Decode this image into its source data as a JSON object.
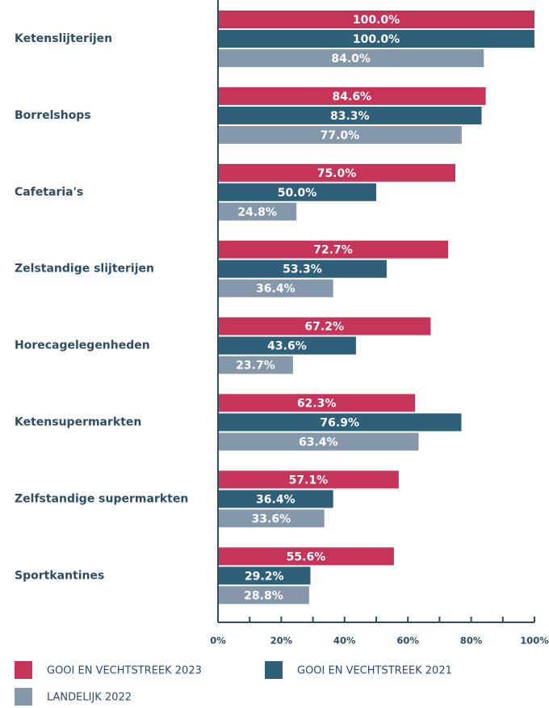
{
  "chart_data": {
    "type": "hbar",
    "categories": [
      "Ketenslijterijen",
      "Borrelshops",
      "Cafetaria's",
      "Zelstandige slijterijen",
      "Horecagelegenheden",
      "Ketensupermarkten",
      "Zelfstandige supermarkten",
      "Sportkantines"
    ],
    "series": [
      {
        "name": "GOOI EN VECHTSTREEK 2023",
        "color": "#c73459",
        "values": [
          100.0,
          84.6,
          75.0,
          72.7,
          67.2,
          62.3,
          57.1,
          55.6
        ],
        "value_labels": [
          "100.0%",
          "84.6%",
          "75.0%",
          "72.7%",
          "67.2%",
          "62.3%",
          "57.1%",
          "55.6%"
        ]
      },
      {
        "name": "GOOI EN VECHTSTREEK 2021",
        "color": "#2f6079",
        "values": [
          100.0,
          83.3,
          50.0,
          53.3,
          43.6,
          76.9,
          36.4,
          29.2
        ],
        "value_labels": [
          "100.0%",
          "83.3%",
          "50.0%",
          "53.3%",
          "43.6%",
          "76.9%",
          "36.4%",
          "29.2%"
        ]
      },
      {
        "name": "LANDELIJK 2022",
        "color": "#8597ab",
        "values": [
          84.0,
          77.0,
          24.8,
          36.4,
          23.7,
          63.4,
          33.6,
          28.8
        ],
        "value_labels": [
          "84.0%",
          "77.0%",
          "24.8%",
          "36.4%",
          "23.7%",
          "63.4%",
          "33.6%",
          "28.8%"
        ]
      }
    ],
    "xlim": [
      0,
      100
    ],
    "xticks": [
      {
        "value": 0,
        "label": "0%"
      },
      {
        "value": 20,
        "label": "20%"
      },
      {
        "value": 40,
        "label": "40%"
      },
      {
        "value": 60,
        "label": "60%"
      },
      {
        "value": 80,
        "label": "80%"
      },
      {
        "value": 100,
        "label": "100%"
      }
    ],
    "xticks_minor": [
      10,
      30,
      50,
      70,
      90
    ]
  }
}
